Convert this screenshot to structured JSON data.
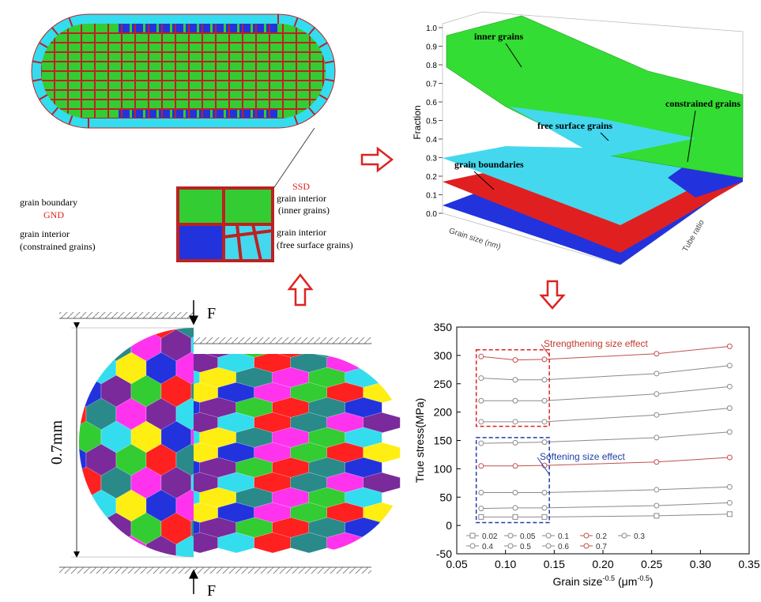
{
  "diagram": {
    "grain_boundary": "grain boundary",
    "gnd": "GND",
    "ssd": "SSD",
    "inner": [
      "grain interior",
      "(inner grains)"
    ],
    "constrained": [
      "grain interior",
      "(constrained grains)"
    ],
    "free_surface": [
      "grain interior",
      "(free surface grains)"
    ],
    "force_top": "F",
    "force_bottom": "F",
    "dimension": "0.7mm"
  },
  "chart_data": [
    {
      "type": "surface",
      "zlabel": "Fraction",
      "xlabel": "Grain size (nm)",
      "ylabel": "Tube ratio",
      "zlim": [
        0,
        1
      ],
      "zticks": [
        {
          "value": 0,
          "label": "0.0"
        },
        0.1,
        0.2,
        0.3,
        0.4,
        0.5,
        0.6,
        0.7,
        0.8,
        0.9,
        {
          "value": 1,
          "label": "1.0"
        }
      ],
      "annotations": [
        "inner grains",
        "constrained grains",
        "free surface grains",
        "grain boundaries"
      ]
    },
    {
      "type": "line",
      "ylabel": "True stress(MPa)",
      "xlabel": [
        "Grain size",
        "-0.5",
        "(μm",
        "-0.5",
        ")"
      ],
      "xlim": [
        0.05,
        0.35
      ],
      "xticks": [
        0.05,
        {
          "value": 0.1,
          "label": "0.10"
        },
        0.15,
        {
          "value": 0.2,
          "label": "0.20"
        },
        0.25,
        {
          "value": 0.3,
          "label": "0.30"
        },
        0.35
      ],
      "ylim": [
        -50,
        350
      ],
      "yticks": [
        -50,
        0,
        50,
        100,
        150,
        200,
        250,
        300,
        350
      ],
      "x": [
        0.075,
        0.11,
        0.14,
        0.255,
        0.33
      ],
      "series": [
        {
          "name": "0.02",
          "color": "#8a8a8a",
          "marker": "square",
          "values": [
            15,
            15,
            15,
            17,
            20
          ]
        },
        {
          "name": "0.05",
          "color": "#8a8a8a",
          "marker": "circle",
          "values": [
            30,
            31,
            31,
            35,
            40
          ]
        },
        {
          "name": "0.1",
          "color": "#8a8a8a",
          "marker": "circle",
          "values": [
            58,
            58,
            58,
            63,
            68
          ]
        },
        {
          "name": "0.2",
          "color": "#c0504d",
          "marker": "circle",
          "values": [
            105,
            105,
            106,
            112,
            120
          ]
        },
        {
          "name": "0.3",
          "color": "#8a8a8a",
          "marker": "circle",
          "values": [
            145,
            146,
            147,
            155,
            165
          ]
        },
        {
          "name": "0.4",
          "color": "#8a8a8a",
          "marker": "circle",
          "values": [
            183,
            183,
            183,
            195,
            207
          ]
        },
        {
          "name": "0.5",
          "color": "#8a8a8a",
          "marker": "circle",
          "values": [
            220,
            220,
            220,
            232,
            245
          ]
        },
        {
          "name": "0.6",
          "color": "#8a8a8a",
          "marker": "circle",
          "values": [
            260,
            257,
            257,
            268,
            282
          ]
        },
        {
          "name": "0.7",
          "color": "#c0504d",
          "marker": "circle",
          "values": [
            298,
            292,
            293,
            303,
            316
          ]
        }
      ],
      "annotations": [
        {
          "text": "Strengthening size effect",
          "color": "#c0392b"
        },
        {
          "text": "Softening size effect",
          "color": "#1f3fa8"
        }
      ]
    }
  ]
}
